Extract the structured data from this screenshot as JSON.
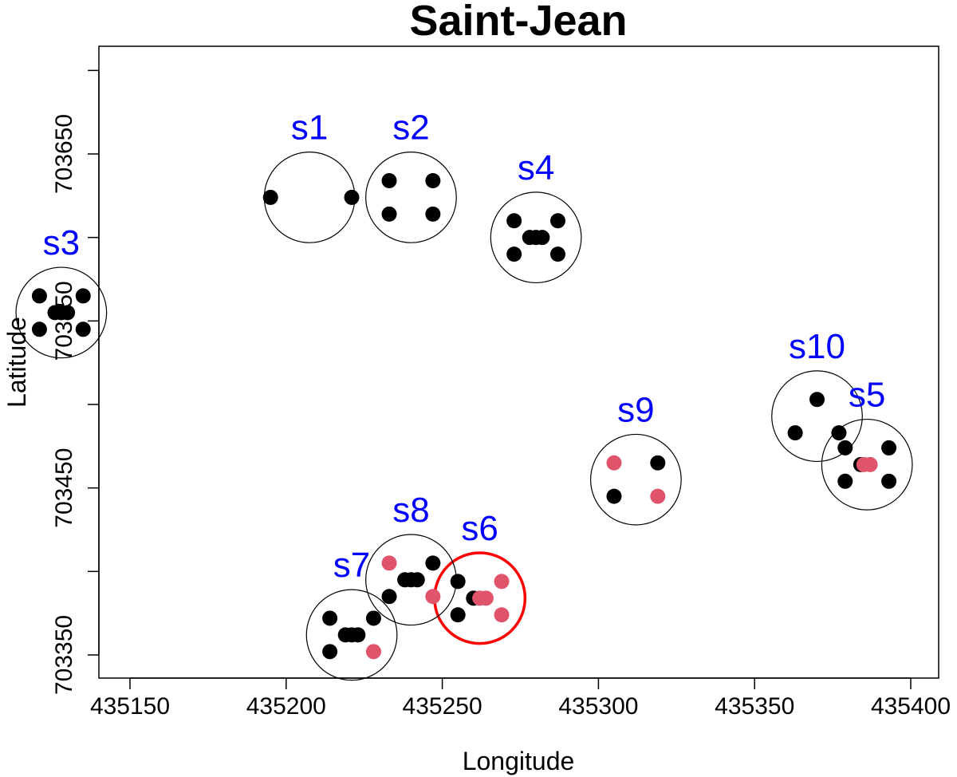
{
  "chart_data": {
    "type": "scatter",
    "title": "Saint-Jean",
    "xlabel": "Longitude",
    "ylabel": "Latitude",
    "xlim": [
      435140,
      435400
    ],
    "ylim": [
      703332,
      703710
    ],
    "xticks": [
      435150,
      435200,
      435250,
      435300,
      435350,
      435400
    ],
    "yticks": [
      703350,
      703450,
      703550,
      703650
    ],
    "colors": {
      "tree": "#000000",
      "highlight": "#df536b",
      "site_label": "#0000ff",
      "selected_circle": "#ff0000",
      "circle": "#000000"
    },
    "sites": [
      {
        "label": "s1",
        "center": [
          435207.5,
          703624
        ],
        "radius": 14.5,
        "selected": false,
        "points": [
          [
            435195,
            703624,
            0
          ],
          [
            435221,
            703624,
            0
          ]
        ]
      },
      {
        "label": "s2",
        "center": [
          435240,
          703624
        ],
        "radius": 14.5,
        "selected": false,
        "points": [
          [
            435233,
            703634,
            0
          ],
          [
            435247,
            703634,
            0
          ],
          [
            435233,
            703614,
            0
          ],
          [
            435247,
            703614,
            0
          ]
        ]
      },
      {
        "label": "s3",
        "center": [
          435128,
          703555
        ],
        "radius": 14.5,
        "selected": false,
        "points": [
          [
            435121,
            703565,
            0
          ],
          [
            435135,
            703565,
            0
          ],
          [
            435121,
            703545,
            0
          ],
          [
            435135,
            703545,
            0
          ],
          [
            435126,
            703555,
            0
          ],
          [
            435128,
            703555,
            0
          ],
          [
            435130,
            703555,
            0
          ]
        ]
      },
      {
        "label": "s4",
        "center": [
          435280,
          703600
        ],
        "radius": 14.5,
        "selected": false,
        "points": [
          [
            435273,
            703610,
            0
          ],
          [
            435287,
            703610,
            0
          ],
          [
            435273,
            703590,
            0
          ],
          [
            435287,
            703590,
            0
          ],
          [
            435278,
            703600,
            0
          ],
          [
            435280,
            703600,
            0
          ],
          [
            435282,
            703600,
            0
          ]
        ]
      },
      {
        "label": "s5",
        "center": [
          435386,
          703464
        ],
        "radius": 14.5,
        "selected": false,
        "points": [
          [
            435379,
            703474,
            0
          ],
          [
            435393,
            703474,
            0
          ],
          [
            435379,
            703454,
            0
          ],
          [
            435393,
            703454,
            0
          ],
          [
            435384,
            703464,
            0
          ],
          [
            435385,
            703464,
            1
          ],
          [
            435387,
            703464,
            1
          ]
        ]
      },
      {
        "label": "s6",
        "center": [
          435262,
          703384
        ],
        "radius": 14.5,
        "selected": true,
        "points": [
          [
            435255,
            703394,
            0
          ],
          [
            435269,
            703394,
            1
          ],
          [
            435255,
            703374,
            0
          ],
          [
            435269,
            703374,
            1
          ],
          [
            435260,
            703384,
            0
          ],
          [
            435262,
            703384,
            1
          ],
          [
            435264,
            703384,
            1
          ]
        ]
      },
      {
        "label": "s7",
        "center": [
          435221,
          703362
        ],
        "radius": 14.5,
        "selected": false,
        "points": [
          [
            435214,
            703372,
            0
          ],
          [
            435228,
            703372,
            0
          ],
          [
            435214,
            703352,
            0
          ],
          [
            435228,
            703352,
            1
          ],
          [
            435219,
            703362,
            0
          ],
          [
            435221,
            703362,
            0
          ],
          [
            435223,
            703362,
            0
          ]
        ]
      },
      {
        "label": "s8",
        "center": [
          435240,
          703395
        ],
        "radius": 14.5,
        "selected": false,
        "points": [
          [
            435233,
            703405,
            1
          ],
          [
            435247,
            703405,
            0
          ],
          [
            435233,
            703385,
            0
          ],
          [
            435247,
            703385,
            1
          ],
          [
            435238,
            703395,
            0
          ],
          [
            435240,
            703395,
            0
          ],
          [
            435242,
            703395,
            0
          ]
        ]
      },
      {
        "label": "s9",
        "center": [
          435312,
          703455
        ],
        "radius": 14.5,
        "selected": false,
        "points": [
          [
            435305,
            703465,
            1
          ],
          [
            435319,
            703465,
            0
          ],
          [
            435305,
            703445,
            0
          ],
          [
            435319,
            703445,
            1
          ]
        ]
      },
      {
        "label": "s10",
        "center": [
          435370,
          703493
        ],
        "radius": 14.5,
        "selected": false,
        "points": [
          [
            435370,
            703503,
            0
          ],
          [
            435363,
            703483,
            0
          ],
          [
            435377,
            703483,
            0
          ]
        ]
      }
    ]
  }
}
